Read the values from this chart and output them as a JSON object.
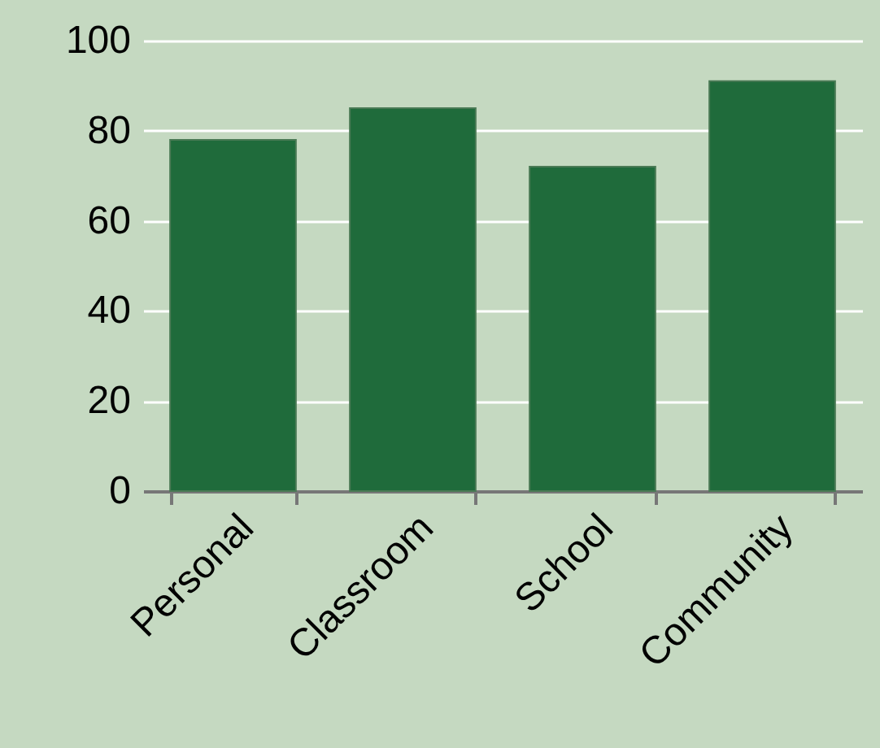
{
  "chart_data": {
    "type": "bar",
    "categories": [
      "Personal",
      "Classroom",
      "School",
      "Community"
    ],
    "values": [
      78,
      85,
      72,
      91
    ],
    "color": "#1f6b3b",
    "ylim": [
      0,
      100
    ],
    "yticks": [
      0,
      20,
      40,
      60,
      80,
      100
    ],
    "grid": "y"
  }
}
